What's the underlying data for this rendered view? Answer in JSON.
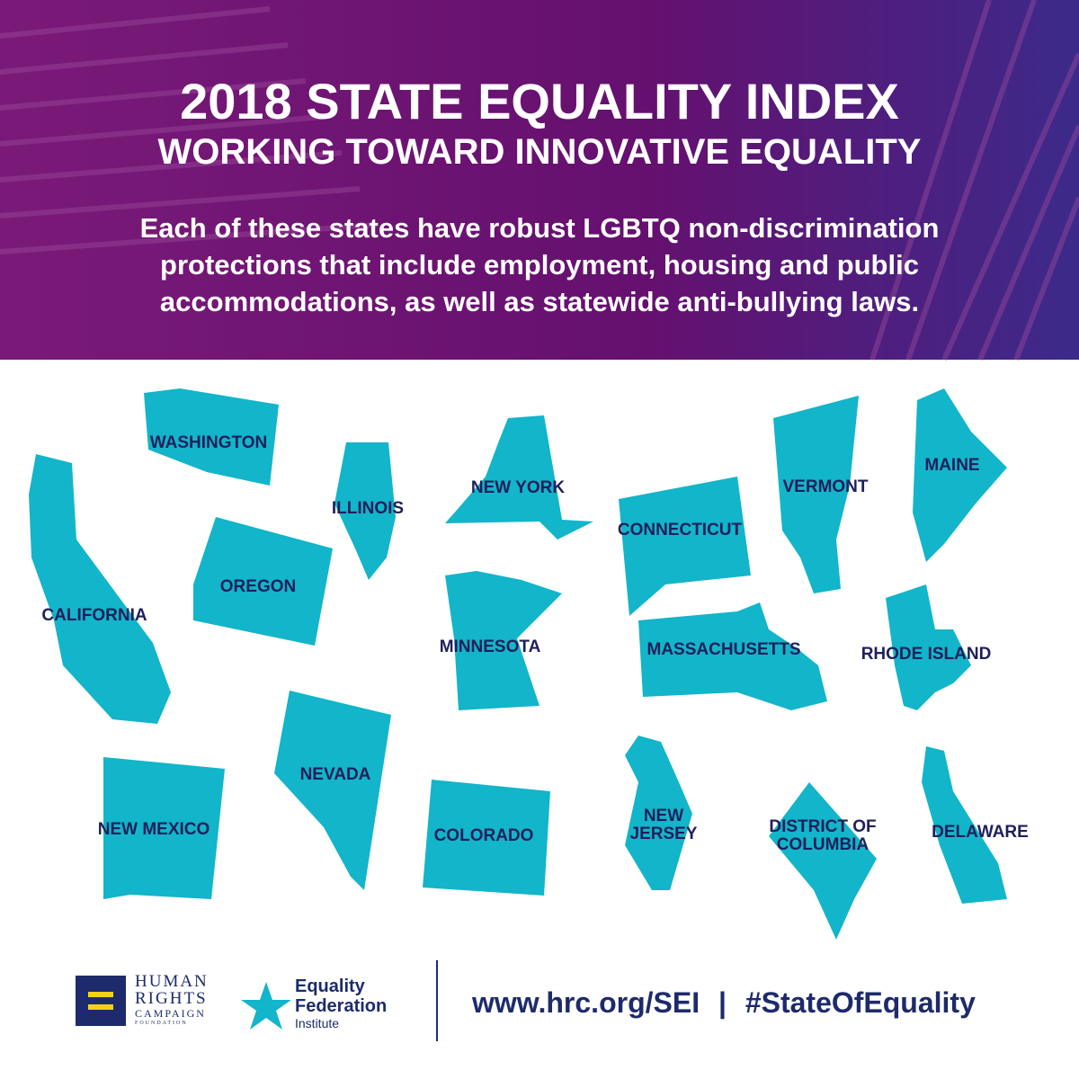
{
  "header": {
    "title": "2018 STATE EQUALITY INDEX",
    "subtitle": "WORKING TOWARD INNOVATIVE EQUALITY",
    "description": [
      "Each of these states have robust LGBTQ non-discrimination",
      "protections that include employment, housing and public",
      "accommodations, as well as statewide anti-bullying laws."
    ]
  },
  "states": [
    "WASHINGTON",
    "CALIFORNIA",
    "OREGON",
    "ILLINOIS",
    "NEW YORK",
    "CONNECTICUT",
    "MINNESOTA",
    "MASSACHUSETTS",
    "VERMONT",
    "MAINE",
    "RHODE ISLAND",
    "NEW MEXICO",
    "NEVADA",
    "COLORADO",
    "NEW JERSEY",
    "DISTRICT OF COLUMBIA",
    "DELAWARE"
  ],
  "footer": {
    "hrc_logo": [
      "HUMAN",
      "RIGHTS",
      "CAMPAIGN",
      "FOUNDATION"
    ],
    "efi_logo": [
      "Equality",
      "Federation",
      "Institute"
    ],
    "url": "www.hrc.org/SEI",
    "separator": "|",
    "hashtag": "#StateOfEquality"
  }
}
